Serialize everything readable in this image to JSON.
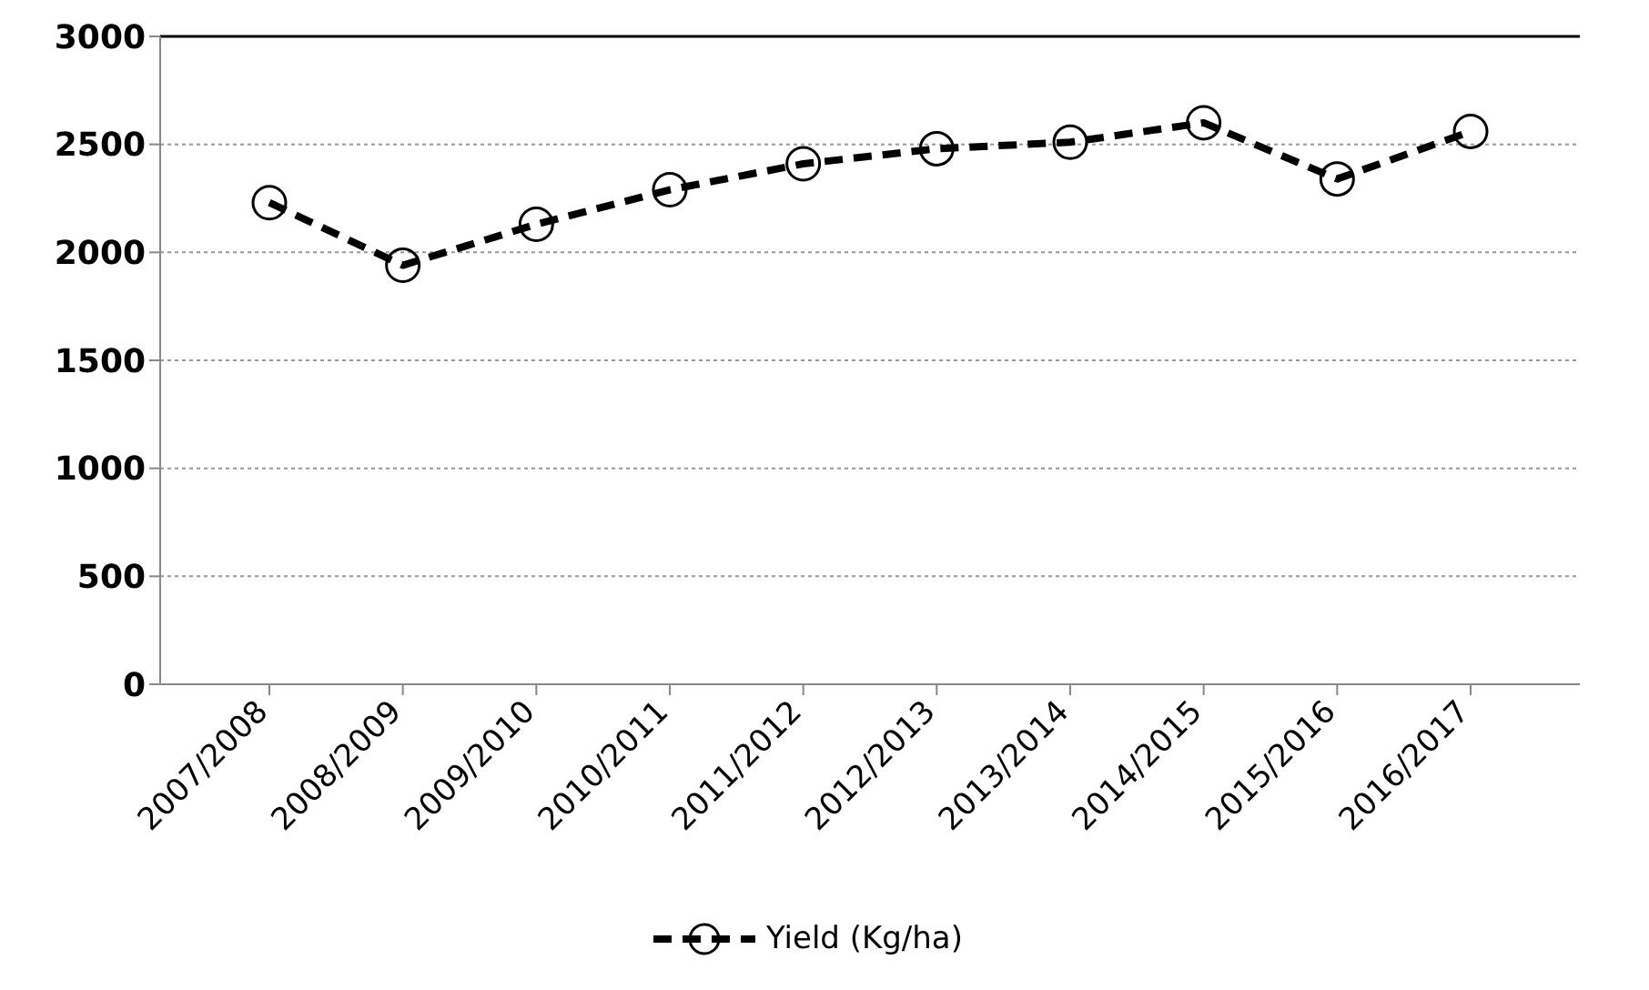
{
  "chart_data": {
    "type": "line",
    "categories": [
      "2007/2008",
      "2008/2009",
      "2009/2010",
      "2010/2011",
      "2011/2012",
      "2012/2013",
      "2013/2014",
      "2014/2015",
      "2015/2016",
      "2016/2017"
    ],
    "series": [
      {
        "name": "Yield (Kg/ha)",
        "color": "#000000",
        "values": [
          2230,
          1940,
          2130,
          2290,
          2410,
          2480,
          2510,
          2600,
          2340,
          2560
        ]
      }
    ],
    "ylim": [
      0,
      3000
    ],
    "yticks": [
      0,
      500,
      1000,
      1500,
      2000,
      2500,
      3000
    ],
    "grid": "y",
    "legend": "bottom",
    "marker": "circle",
    "line_style": "dashed"
  }
}
